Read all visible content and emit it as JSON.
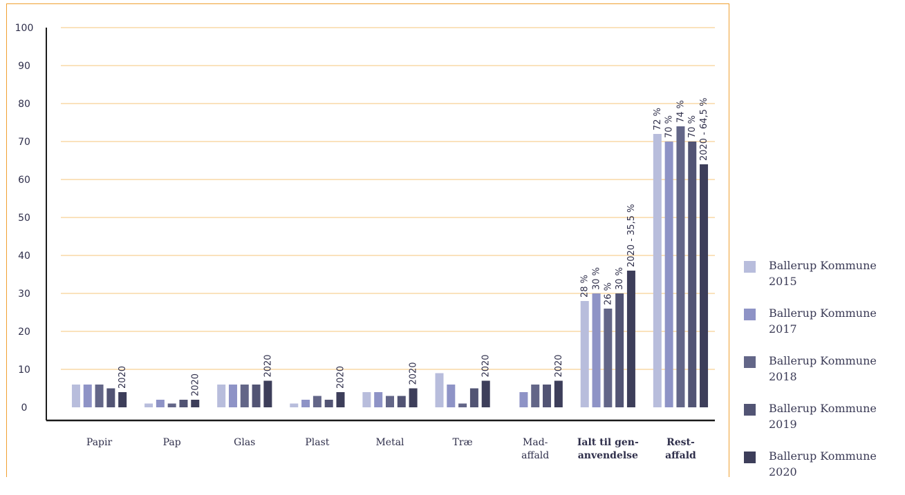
{
  "chart_data": {
    "type": "bar",
    "categories": [
      "Papir",
      "Pap",
      "Glas",
      "Plast",
      "Metal",
      "Træ",
      "Mad-\naffald",
      "Ialt til gen-\nanvendelse",
      "Rest-\naffald"
    ],
    "bold_categories": [
      "Ialt til gen-\nanvendelse",
      "Rest-\naffald"
    ],
    "ylim": [
      0,
      100
    ],
    "yticks": [
      0,
      10,
      20,
      30,
      40,
      50,
      60,
      70,
      80,
      90,
      100
    ],
    "grid": true,
    "legend_position": "right",
    "series": [
      {
        "name": "Ballerup Kommune 2015",
        "color": "#b8bddc",
        "values": [
          6,
          1,
          6,
          1,
          4,
          9,
          null,
          28,
          72
        ]
      },
      {
        "name": "Ballerup Kommune 2017",
        "color": "#8e93c6",
        "values": [
          6,
          2,
          6,
          2,
          4,
          6,
          4,
          30,
          70
        ]
      },
      {
        "name": "Ballerup Kommune 2018",
        "color": "#636688",
        "values": [
          6,
          1,
          6,
          3,
          3,
          1,
          6,
          26,
          74
        ]
      },
      {
        "name": "Ballerup Kommune 2019",
        "color": "#525474",
        "values": [
          5,
          2,
          6,
          2,
          3,
          5,
          6,
          30,
          70
        ]
      },
      {
        "name": "Ballerup Kommune 2020",
        "color": "#3d3e5a",
        "values": [
          4,
          2,
          7,
          4,
          5,
          7,
          7,
          36,
          64
        ]
      }
    ],
    "annotations": [
      [
        "",
        "",
        "",
        "",
        "2020"
      ],
      [
        "",
        "",
        "",
        "",
        "2020"
      ],
      [
        "",
        "",
        "",
        "",
        "2020"
      ],
      [
        "",
        "",
        "",
        "",
        "2020"
      ],
      [
        "",
        "",
        "",
        "",
        "2020"
      ],
      [
        "",
        "",
        "",
        "",
        "2020"
      ],
      [
        "",
        "",
        "",
        "",
        "2020"
      ],
      [
        "28 %",
        "30 %",
        "26 %",
        "30 %",
        "2020 - 35,5 %"
      ],
      [
        "72 %",
        "70 %",
        "74 %",
        "70 %",
        "2020 - 64,5 %"
      ]
    ],
    "colors": {
      "frame": "#f0a030",
      "grid": "#f5c47a",
      "axis": "#1a1a1a",
      "text": "#2e2e4a"
    }
  }
}
